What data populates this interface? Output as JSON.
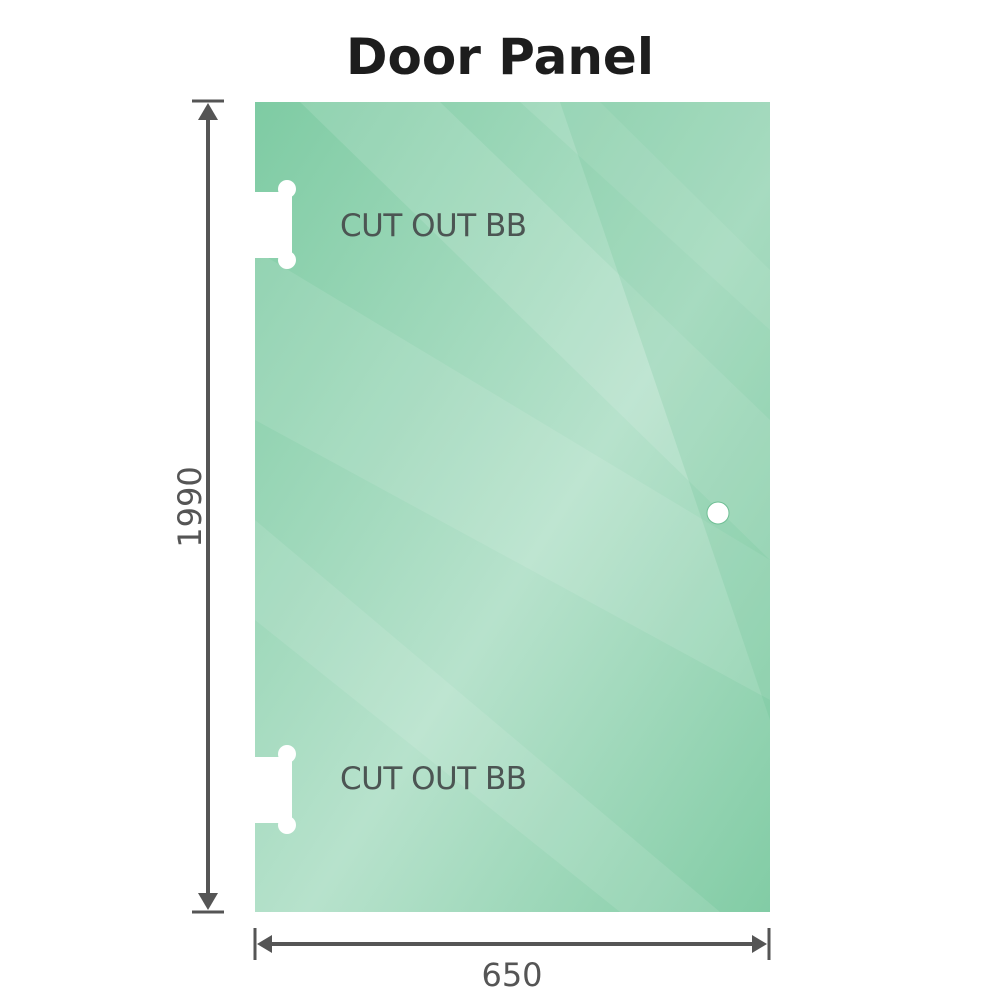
{
  "title": "Door Panel",
  "panel": {
    "height_label": "1990",
    "width_label": "650",
    "cutouts": [
      {
        "label": "CUT OUT BB"
      },
      {
        "label": "CUT OUT BB"
      }
    ],
    "glass_color": "#86cfa9",
    "dimension_color": "#555555"
  }
}
